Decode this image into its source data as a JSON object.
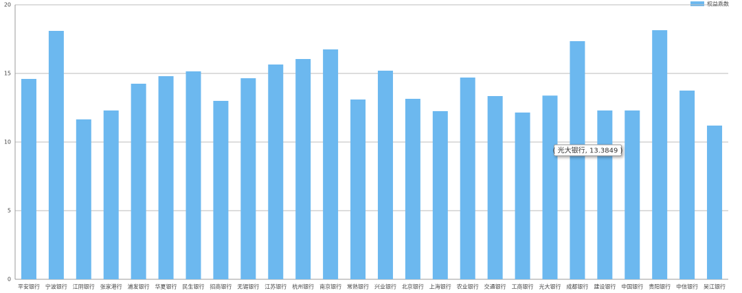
{
  "chart_data": {
    "type": "bar",
    "legend": "权益乘数",
    "legend_position": "top-right",
    "color": "#6cb8ef",
    "categories": [
      "平安银行",
      "宁波银行",
      "江阴银行",
      "张家港行",
      "浦发银行",
      "华夏银行",
      "民生银行",
      "招商银行",
      "无锡银行",
      "江苏银行",
      "杭州银行",
      "南京银行",
      "常熟银行",
      "兴业银行",
      "北京银行",
      "上海银行",
      "农业银行",
      "交通银行",
      "工商银行",
      "光大银行",
      "成都银行",
      "建设银行",
      "中国银行",
      "贵阳银行",
      "中信银行",
      "吴江银行"
    ],
    "values": [
      14.6,
      18.1,
      11.65,
      12.3,
      14.25,
      14.8,
      15.15,
      13.0,
      14.65,
      15.65,
      16.05,
      16.75,
      13.1,
      15.2,
      13.15,
      12.25,
      14.7,
      13.35,
      12.15,
      13.3849,
      17.35,
      12.3,
      12.3,
      18.15,
      13.75,
      11.2
    ],
    "tooltip": "( 光大银行, 13.3849 )",
    "ylim": [
      0,
      20
    ],
    "yticks": [
      0,
      5,
      10,
      15,
      20
    ],
    "grid": true
  }
}
